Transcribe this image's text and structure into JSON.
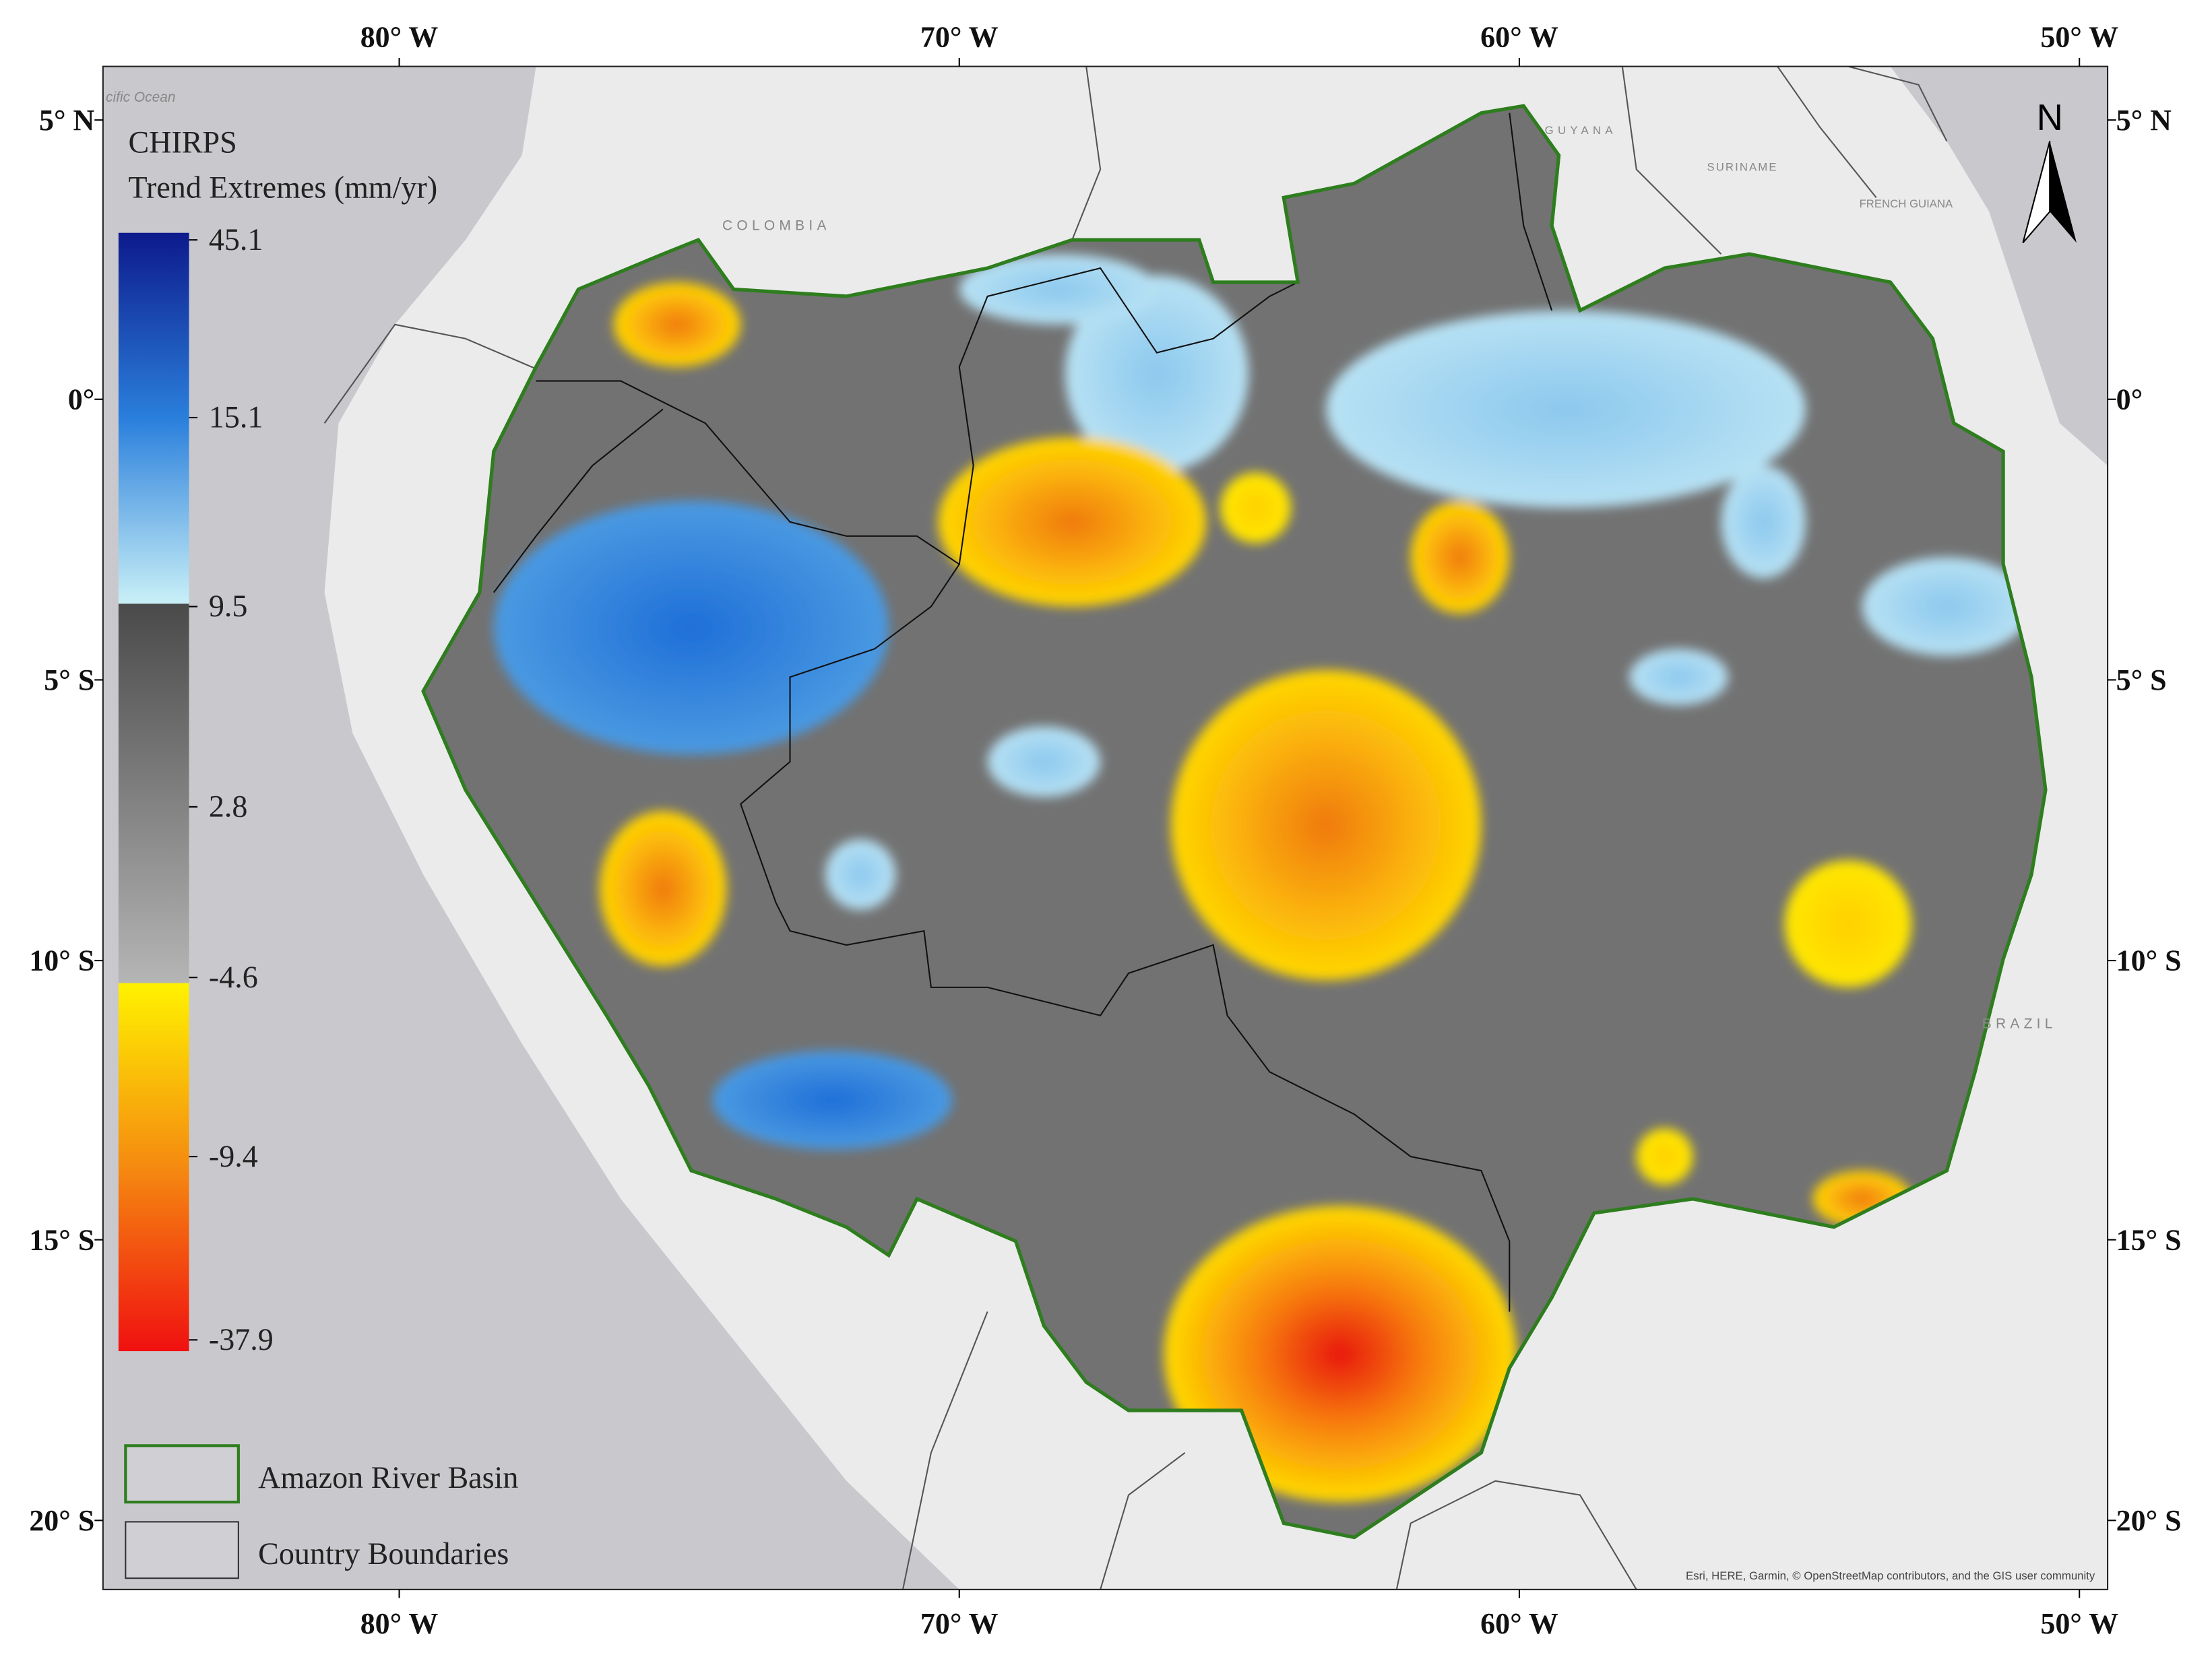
{
  "map": {
    "legend": {
      "title": "CHIRPS",
      "subtitle": "Trend Extremes (mm/yr)",
      "colorbar_labels": [
        45.1,
        15.1,
        9.5,
        2.8,
        -4.6,
        -9.4,
        -37.9
      ],
      "entries": [
        "Amazon River Basin",
        "Country Boundaries"
      ]
    },
    "longitude_labels": [
      "80° W",
      "70° W",
      "60° W",
      "50° W"
    ],
    "latitude_labels": [
      "5° N",
      "0°",
      "5° S",
      "10° S",
      "15° S",
      "20° S"
    ],
    "place_labels": [
      "cific Ocean",
      "COLOMBIA",
      "GUYANA",
      "SURINAME",
      "FRENCH GUIANA",
      "BRAZIL"
    ],
    "north_arrow": "N",
    "attribution": "Esri, HERE, Garmin, © OpenStreetMap contributors, and the GIS user community"
  }
}
